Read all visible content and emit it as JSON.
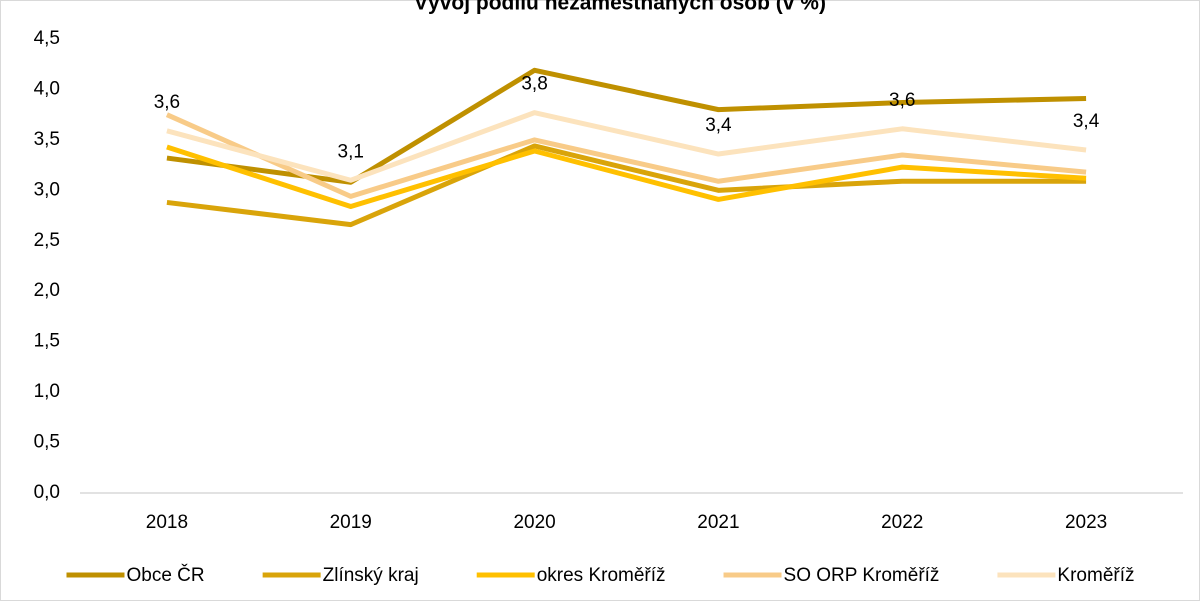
{
  "chart_data": {
    "type": "line",
    "title": "Vývoj podílu nezaměstnaných osob (v %)",
    "categories": [
      "2018",
      "2019",
      "2020",
      "2021",
      "2022",
      "2023"
    ],
    "series": [
      {
        "name": "Obce ČR",
        "color": "#bf9000",
        "values": [
          3.32,
          3.08,
          4.19,
          3.8,
          3.87,
          3.91
        ]
      },
      {
        "name": "Zlínský kraj",
        "color": "#d9a40a",
        "values": [
          2.88,
          2.66,
          3.44,
          3.0,
          3.09,
          3.09
        ]
      },
      {
        "name": "okres Kroměříž",
        "color": "#ffc000",
        "values": [
          3.43,
          2.84,
          3.39,
          2.91,
          3.23,
          3.12
        ]
      },
      {
        "name": "SO ORP Kroměříž",
        "color": "#f8cb88",
        "values": [
          3.75,
          2.94,
          3.5,
          3.09,
          3.35,
          3.18
        ]
      },
      {
        "name": "Kroměříž",
        "color": "#fce3bd",
        "values": [
          3.59,
          3.1,
          3.77,
          3.36,
          3.61,
          3.4
        ],
        "value_labels": [
          "3,6",
          "3,1",
          "3,8",
          "3,4",
          "3,6",
          "3,4"
        ]
      }
    ],
    "ylim": [
      0,
      4.5
    ],
    "yticks": [
      {
        "value": 0,
        "label": "0,0"
      },
      {
        "value": 0.5,
        "label": "0,5"
      },
      {
        "value": 1,
        "label": "1,0"
      },
      {
        "value": 1.5,
        "label": "1,5"
      },
      {
        "value": 2,
        "label": "2,0"
      },
      {
        "value": 2.5,
        "label": "2,5"
      },
      {
        "value": 3,
        "label": "3,0"
      },
      {
        "value": 3.5,
        "label": "3,5"
      },
      {
        "value": 4,
        "label": "4,0"
      },
      {
        "value": 4.5,
        "label": "4,5"
      }
    ],
    "grid": false,
    "legend": "bottom"
  }
}
